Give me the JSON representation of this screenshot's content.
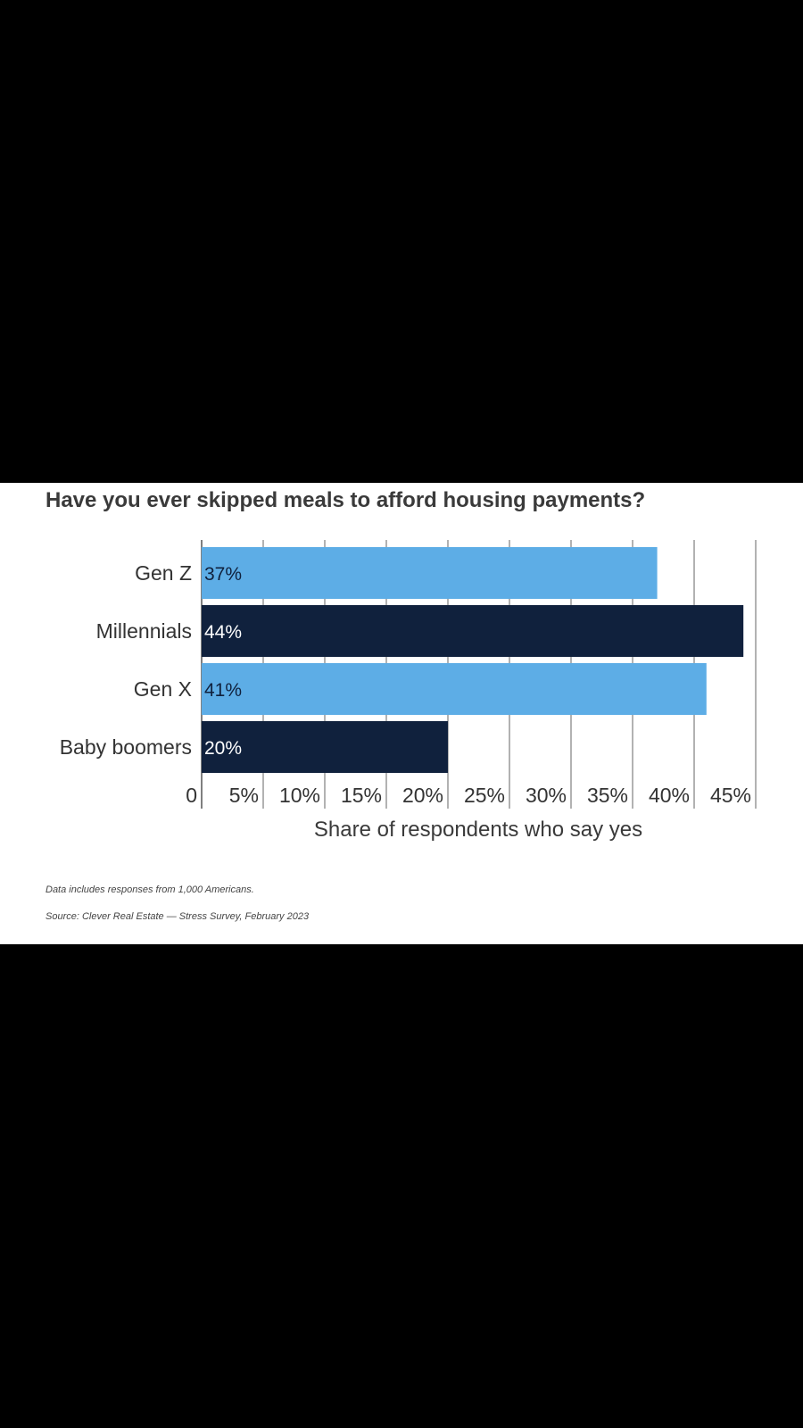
{
  "chart_data": {
    "type": "bar",
    "orientation": "horizontal",
    "title": "Have you ever skipped meals to afford housing payments?",
    "xlabel": "Share of respondents who say yes",
    "ylabel": "",
    "categories": [
      "Gen Z",
      "Millennials",
      "Gen X",
      "Baby boomers"
    ],
    "values": [
      37,
      44,
      41,
      20
    ],
    "value_labels": [
      "37%",
      "44%",
      "41%",
      "20%"
    ],
    "xlim": [
      0,
      45
    ],
    "ticks": [
      0,
      5,
      10,
      15,
      20,
      25,
      30,
      35,
      40,
      45
    ],
    "tick_labels": [
      "0",
      "5%",
      "10%",
      "15%",
      "20%",
      "25%",
      "30%",
      "35%",
      "40%",
      "45%"
    ],
    "bar_colors": [
      "#5dade6",
      "#10213d",
      "#5dade6",
      "#10213d"
    ],
    "value_label_colors": [
      "#10213d",
      "#ffffff",
      "#10213d",
      "#ffffff"
    ],
    "grid": true,
    "legend": "none"
  },
  "footnotes": {
    "data_note": "Data includes responses from 1,000 Americans.",
    "source": "Source: Clever Real Estate — Stress Survey, February 2023"
  }
}
